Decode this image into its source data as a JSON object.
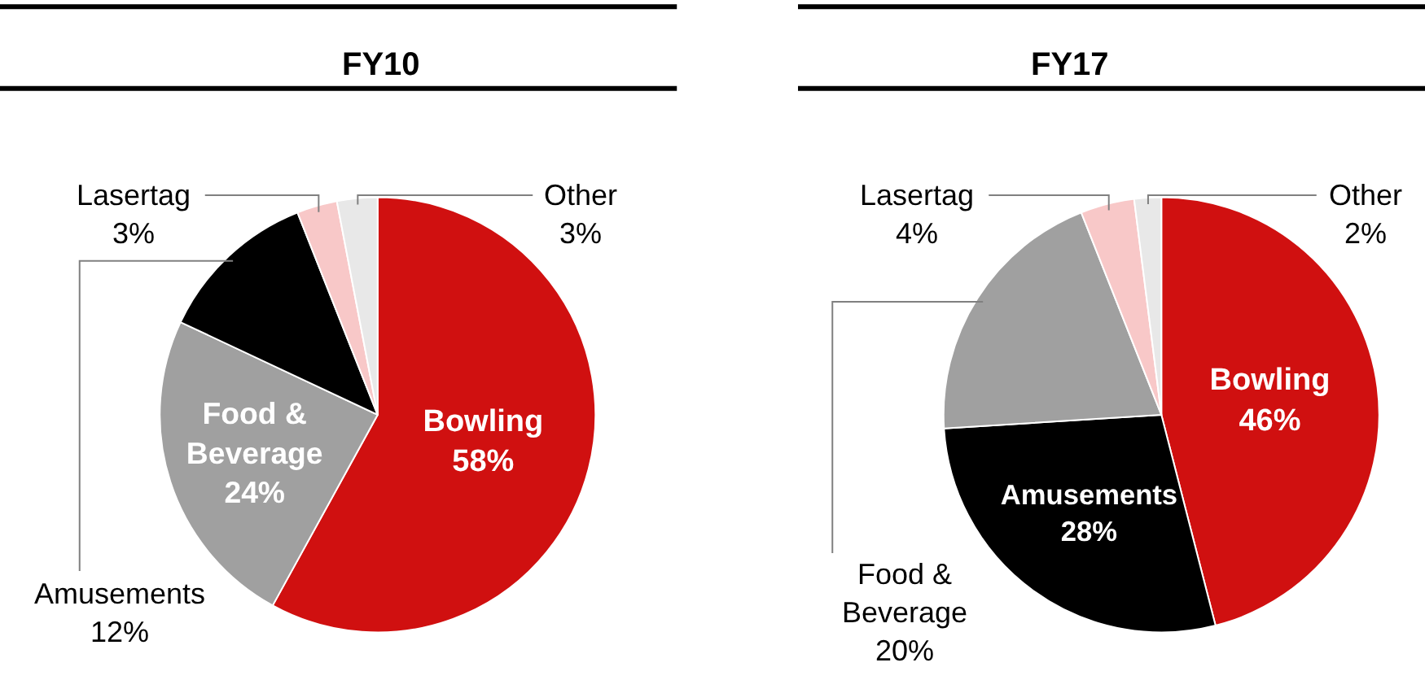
{
  "chart_data": [
    {
      "type": "pie",
      "title": "FY10",
      "categories": [
        "Bowling",
        "Food & Beverage",
        "Amusements",
        "Lasertag",
        "Other"
      ],
      "values": [
        58,
        24,
        12,
        3,
        3
      ],
      "value_labels": [
        "58%",
        "24%",
        "12%",
        "3%",
        "3%"
      ],
      "colors": [
        "#d01010",
        "#a0a0a0",
        "#000000",
        "#f8c8c8",
        "#e8e8e8"
      ],
      "legend": false
    },
    {
      "type": "pie",
      "title": "FY17",
      "categories": [
        "Bowling",
        "Amusements",
        "Food & Beverage",
        "Lasertag",
        "Other"
      ],
      "values": [
        46,
        28,
        20,
        4,
        2
      ],
      "value_labels": [
        "46%",
        "28%",
        "20%",
        "4%",
        "2%"
      ],
      "colors": [
        "#d01010",
        "#000000",
        "#a0a0a0",
        "#f8c8c8",
        "#e8e8e8"
      ],
      "legend": false
    }
  ]
}
